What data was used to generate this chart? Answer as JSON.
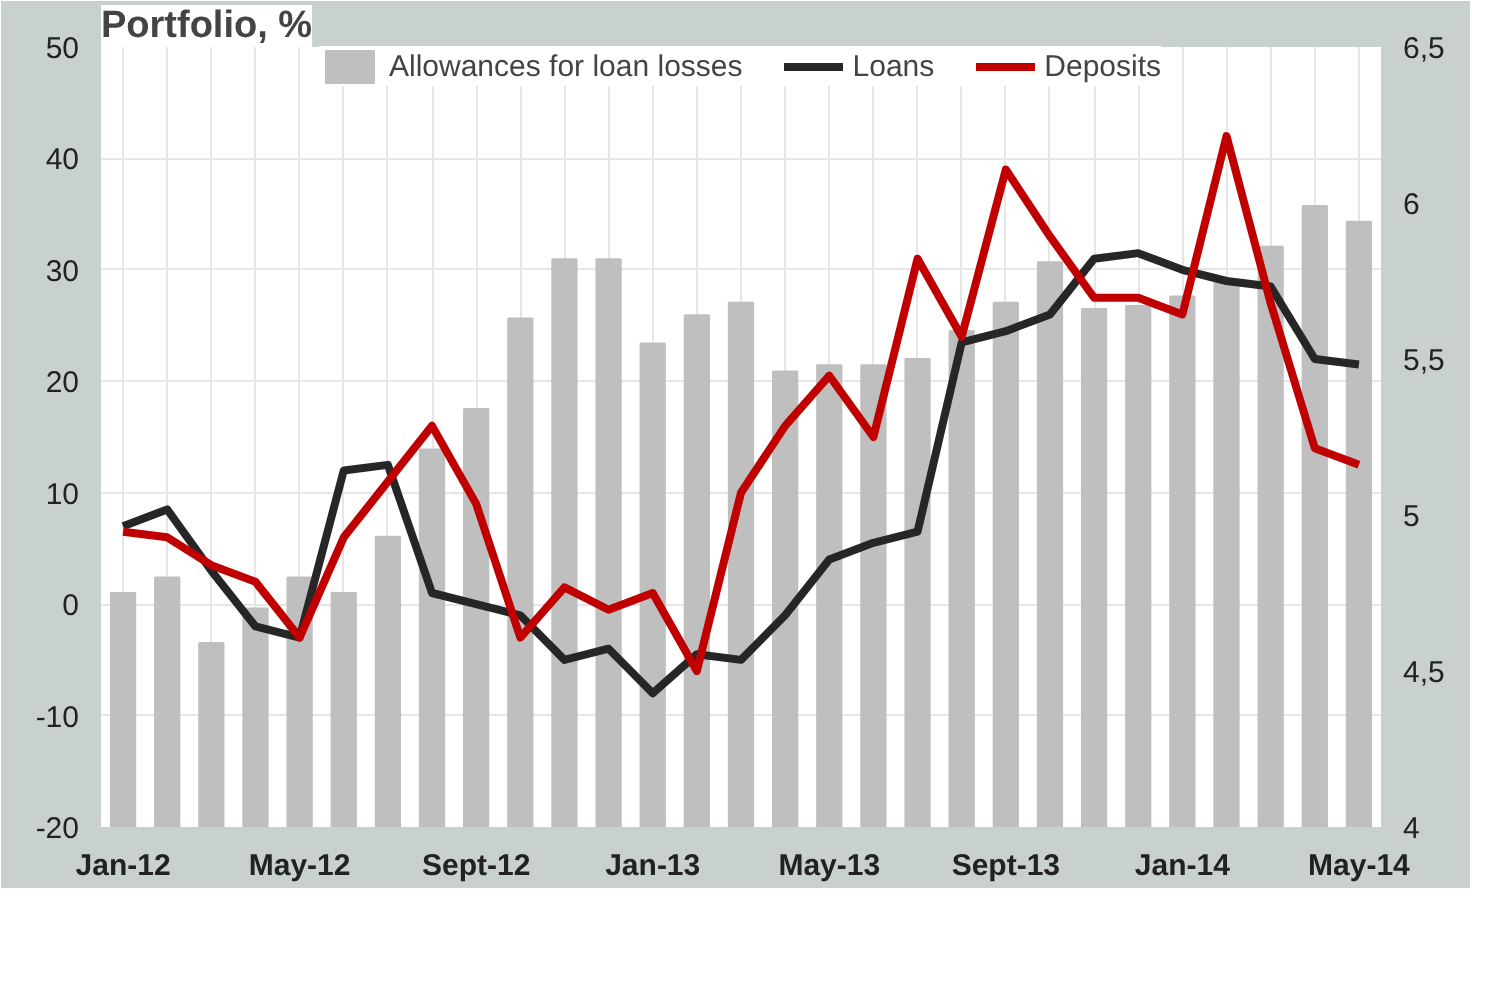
{
  "chart_data": {
    "type": "line",
    "title": "Portfolio, %",
    "categories": [
      "Jan-12",
      null,
      null,
      null,
      "May-12",
      null,
      null,
      null,
      "Sept-12",
      null,
      null,
      null,
      "Jan-13",
      null,
      null,
      null,
      "May-13",
      null,
      null,
      null,
      "Sept-13",
      null,
      null,
      null,
      "Jan-14",
      null,
      null,
      null,
      "May-14"
    ],
    "series": [
      {
        "name": "Allowances for loan losses",
        "type": "bar",
        "axis": "y2",
        "color": "#bfbfbf",
        "values": [
          4.75,
          4.8,
          4.59,
          4.7,
          4.8,
          4.75,
          4.93,
          5.21,
          5.34,
          5.63,
          5.82,
          5.82,
          5.55,
          5.64,
          5.68,
          5.46,
          5.48,
          5.48,
          5.5,
          5.59,
          5.68,
          5.81,
          5.66,
          5.67,
          5.7,
          5.75,
          5.86,
          5.99,
          5.94
        ]
      },
      {
        "name": "Loans",
        "color": "#262626",
        "values": [
          7,
          8.5,
          3,
          -2,
          -3,
          12,
          12.5,
          1,
          0,
          -1,
          -5,
          -4,
          -8,
          -4.5,
          -5,
          -1,
          4,
          5.5,
          6.5,
          23.5,
          24.5,
          26,
          31,
          31.5,
          30,
          29,
          28.5,
          22,
          21.5
        ]
      },
      {
        "name": "Deposits",
        "color": "#c00000",
        "values": [
          6.5,
          6,
          3.5,
          2,
          -3,
          6,
          11,
          16,
          9,
          -3,
          1.5,
          -0.5,
          1,
          -6,
          10,
          16,
          20.5,
          15,
          31,
          24,
          39,
          33,
          27.5,
          27.5,
          26,
          42,
          27,
          14,
          12.5
        ]
      }
    ],
    "ylim": [
      -20,
      50
    ],
    "yticks": [
      -20,
      -10,
      0,
      10,
      20,
      30,
      40,
      50
    ],
    "y2lim": [
      4,
      6.5
    ],
    "y2ticks": [
      4,
      {
        "value": 4.5,
        "label": "4,5"
      },
      5,
      {
        "value": 5.5,
        "label": "5,5"
      },
      6,
      {
        "value": 6.5,
        "label": "6,5"
      }
    ],
    "grid": true,
    "legend": "top",
    "line_style": "solid",
    "marker": "none"
  }
}
